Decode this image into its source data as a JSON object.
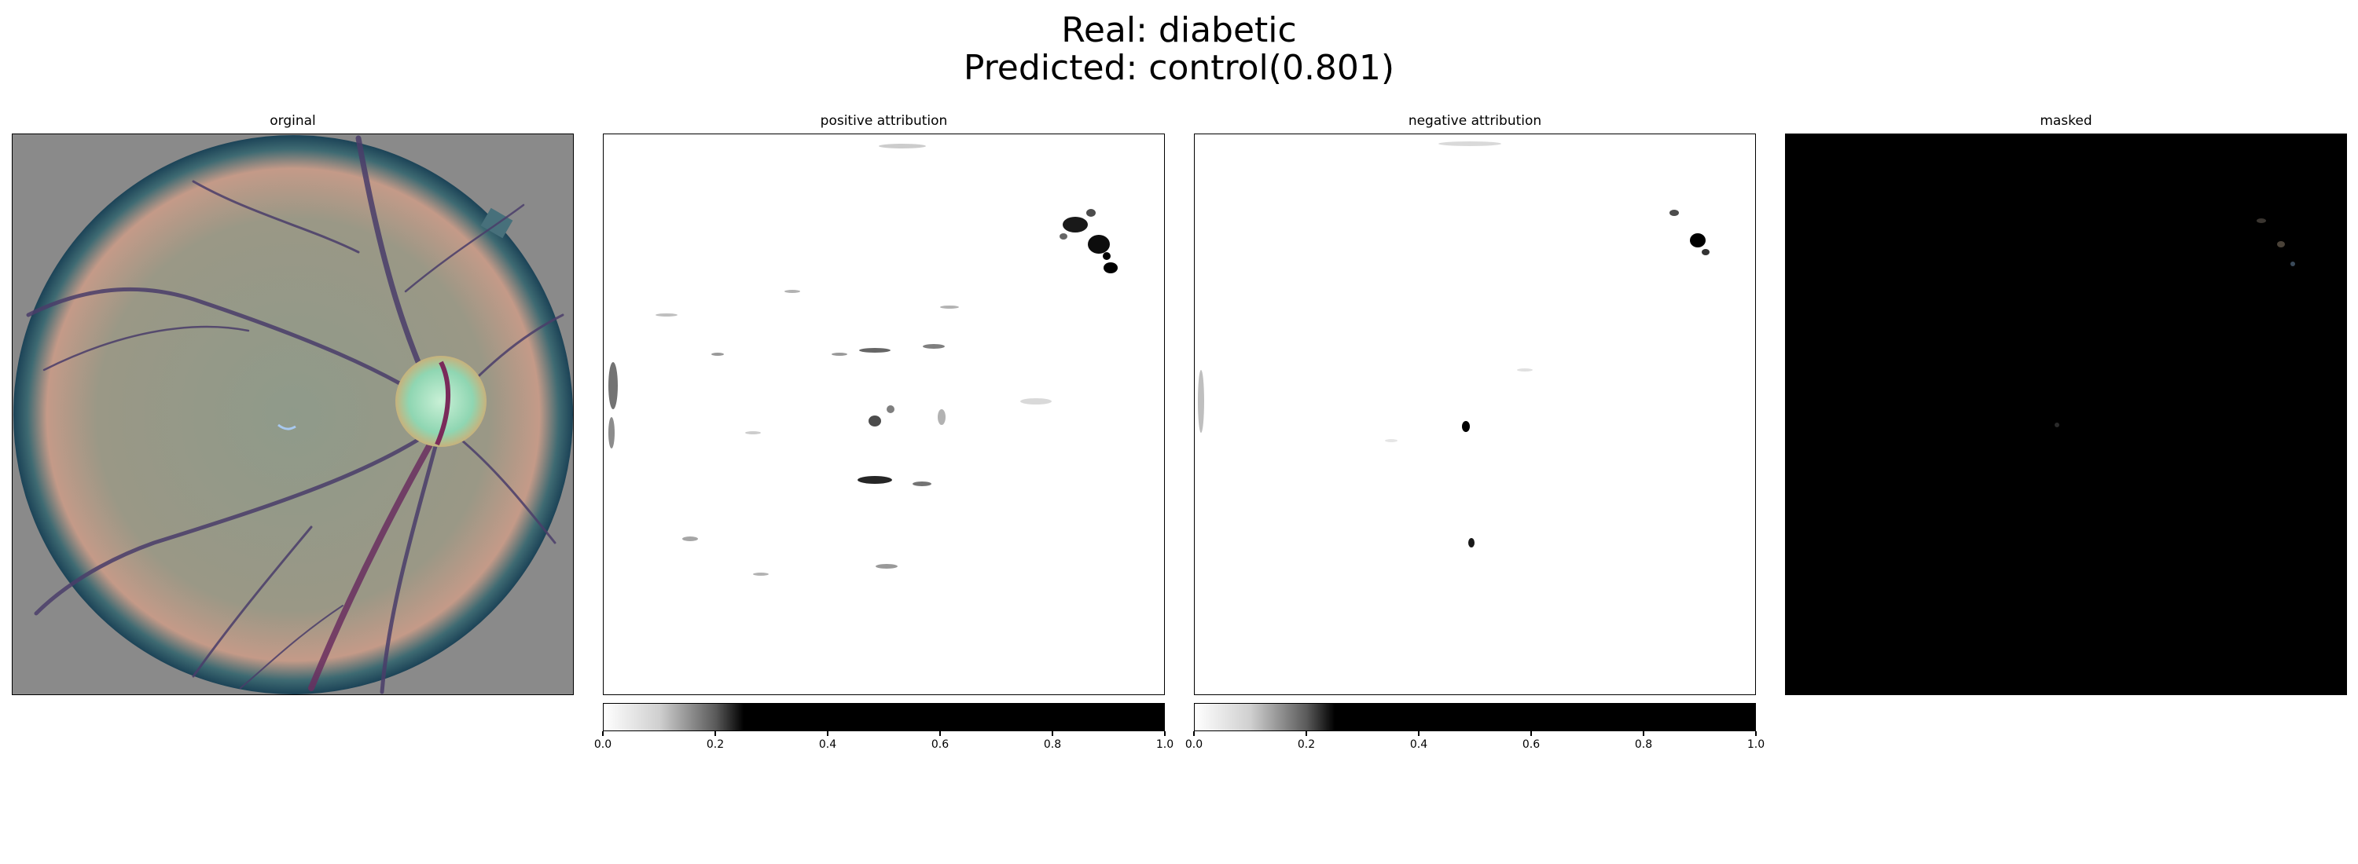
{
  "figure": {
    "title_line1": "Real: diabetic",
    "title_line2": "Predicted: control(0.801)"
  },
  "panels": [
    {
      "title": "orginal"
    },
    {
      "title": "positive attribution"
    },
    {
      "title": "negative attribution"
    },
    {
      "title": "masked"
    }
  ],
  "colorbar": {
    "ticks": [
      "0.0",
      "0.2",
      "0.4",
      "0.6",
      "0.8",
      "1.0"
    ],
    "range": [
      0.0,
      1.0
    ],
    "colormap": "white-to-black"
  },
  "colors": {
    "background": "#ffffff",
    "fundus_background": "#8a8a8a",
    "fundus_rim": "#1f4f63",
    "vessel": "#5a3a63",
    "optic_disc": "#9fd6b8",
    "masked_background": "#000000"
  }
}
